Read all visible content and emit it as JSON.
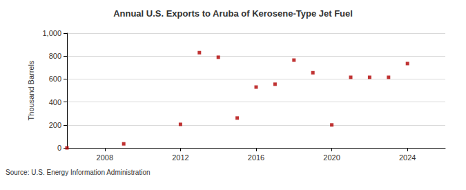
{
  "chart_data": {
    "type": "scatter",
    "title": "Annual U.S. Exports to Aruba of Kerosene-Type Jet Fuel",
    "y_label": "Thousand Barrels",
    "annotation": "Source: U.S. Energy Information Administration",
    "x": [
      2006,
      2009,
      2012,
      2013,
      2014,
      2015,
      2016,
      2017,
      2018,
      2019,
      2020,
      2021,
      2022,
      2023,
      2024
    ],
    "values": [
      0,
      35,
      205,
      830,
      790,
      260,
      530,
      555,
      765,
      655,
      200,
      615,
      615,
      615,
      735
    ],
    "color": "#b00000",
    "marker": "square",
    "xlim": [
      2006,
      2026
    ],
    "xticks": [
      2008,
      2012,
      2016,
      2020,
      2024
    ],
    "ylim": [
      0,
      1000
    ],
    "yticks": [
      0,
      200,
      400,
      600,
      800,
      {
        "value": 1000,
        "label": "1,000"
      }
    ],
    "grid": true
  }
}
